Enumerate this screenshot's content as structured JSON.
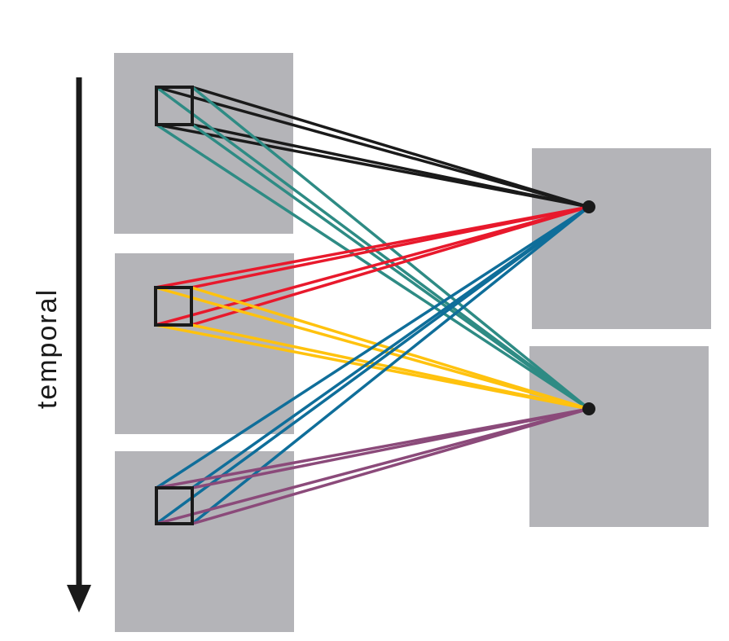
{
  "axis_label": "temporal",
  "colors": {
    "panel": "#b4b4b8",
    "ink": "#1a1a1a",
    "teal": "#2e8b84",
    "red": "#e8192c",
    "yellow": "#ffc20e",
    "blue": "#0f6e9a",
    "purple": "#8b4a7a"
  },
  "diagram": {
    "source_frames": [
      "frame-1",
      "frame-2",
      "frame-3"
    ],
    "target_frames": [
      "target-1",
      "target-2"
    ],
    "connection_groups": [
      {
        "name": "black",
        "from": "frame-1",
        "to": "target-1",
        "color": "ink"
      },
      {
        "name": "teal",
        "from": "frame-1",
        "to": "target-2",
        "color": "teal"
      },
      {
        "name": "red",
        "from": "frame-2",
        "to": "target-1",
        "color": "red"
      },
      {
        "name": "yellow",
        "from": "frame-2",
        "to": "target-2",
        "color": "yellow"
      },
      {
        "name": "blue",
        "from": "frame-3",
        "to": "target-1",
        "color": "blue"
      },
      {
        "name": "purple",
        "from": "frame-3",
        "to": "target-2",
        "color": "purple"
      }
    ]
  }
}
